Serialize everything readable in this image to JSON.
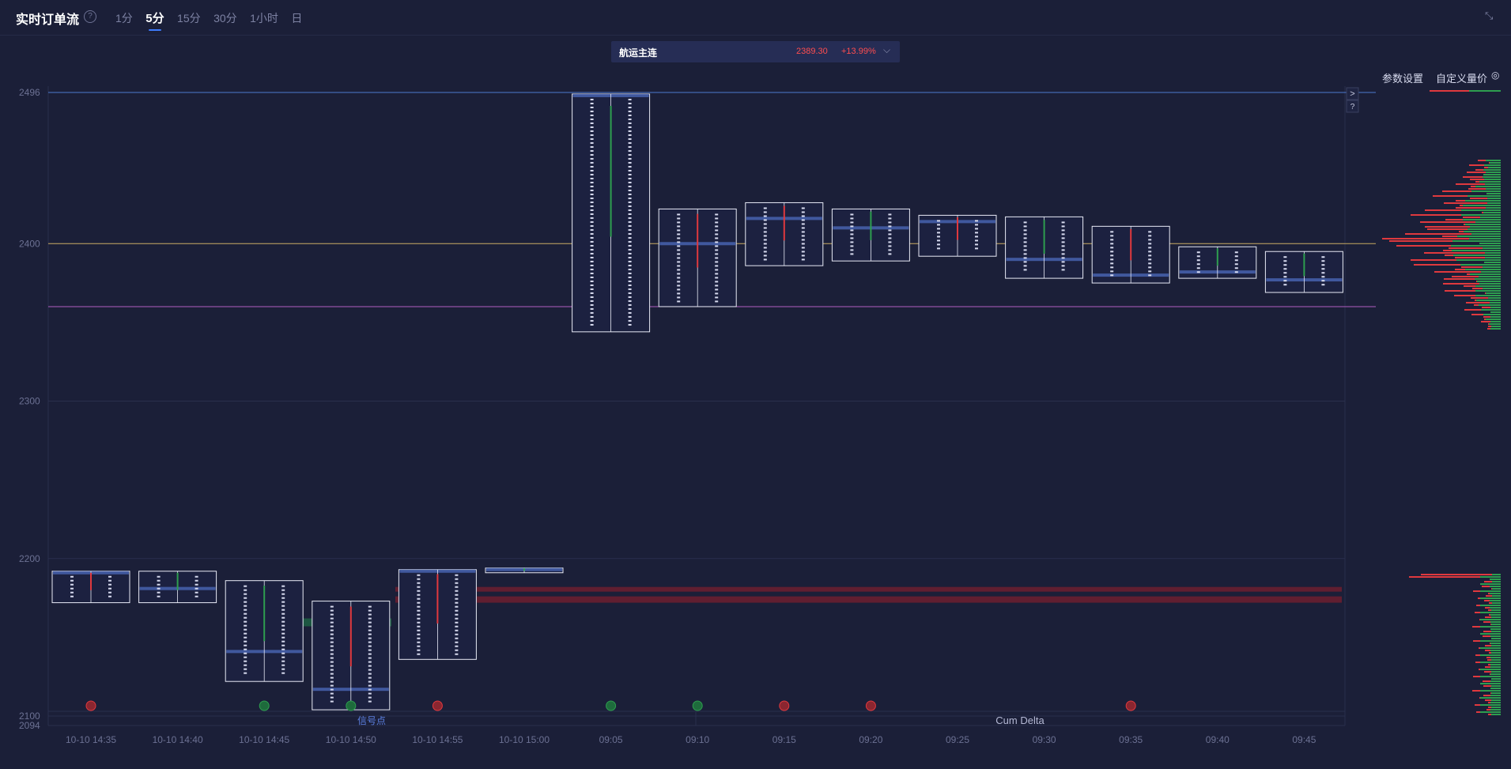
{
  "header": {
    "title": "实时订单流",
    "timeframes": [
      "1分",
      "5分",
      "15分",
      "30分",
      "1小时",
      "日"
    ],
    "active_timeframe": "5分"
  },
  "instrument": {
    "name": "航运主连",
    "price": "2389.30",
    "change": "+13.99%"
  },
  "controls": {
    "param_settings": "参数设置",
    "custom_volume_price": "自定义量价",
    "panel_toggle": ">",
    "panel_help": "?"
  },
  "chart_data": {
    "type": "footprint",
    "y_ticks": [
      "2496",
      "2400",
      "2300",
      "2200",
      "2100",
      "2094"
    ],
    "ylim": [
      2094,
      2500
    ],
    "x": [
      "10-10 14:35",
      "10-10 14:40",
      "10-10 14:45",
      "10-10 14:50",
      "10-10 14:55",
      "10-10 15:00",
      "09:05",
      "09:10",
      "09:15",
      "09:20",
      "09:25",
      "09:30",
      "09:35",
      "09:40",
      "09:45"
    ],
    "bars": [
      {
        "x": "10-10 14:35",
        "high": 2192,
        "low": 2172,
        "poc": 2191,
        "delta": "sell"
      },
      {
        "x": "10-10 14:40",
        "high": 2192,
        "low": 2172,
        "poc": 2181,
        "delta": "buy"
      },
      {
        "x": "10-10 14:45",
        "high": 2186,
        "low": 2122,
        "poc": 2141,
        "delta": "buy"
      },
      {
        "x": "10-10 14:50",
        "high": 2173,
        "low": 2104,
        "poc": 2117,
        "delta": "sell"
      },
      {
        "x": "10-10 14:55",
        "high": 2193,
        "low": 2136,
        "poc": 2192,
        "delta": "sell"
      },
      {
        "x": "10-10 15:00",
        "high": 2194,
        "low": 2191,
        "poc": 2193,
        "delta": "buy"
      },
      {
        "x": "09:05",
        "high": 2495,
        "low": 2344,
        "poc": 2494,
        "delta": "buy"
      },
      {
        "x": "09:10",
        "high": 2422,
        "low": 2360,
        "poc": 2400,
        "delta": "sell"
      },
      {
        "x": "09:15",
        "high": 2426,
        "low": 2386,
        "poc": 2416,
        "delta": "sell"
      },
      {
        "x": "09:20",
        "high": 2422,
        "low": 2389,
        "poc": 2410,
        "delta": "buy"
      },
      {
        "x": "09:25",
        "high": 2418,
        "low": 2392,
        "poc": 2414,
        "delta": "sell"
      },
      {
        "x": "09:30",
        "high": 2417,
        "low": 2378,
        "poc": 2390,
        "delta": "buy"
      },
      {
        "x": "09:35",
        "high": 2411,
        "low": 2375,
        "poc": 2380,
        "delta": "sell"
      },
      {
        "x": "09:40",
        "high": 2398,
        "low": 2378,
        "poc": 2382,
        "delta": "buy"
      },
      {
        "x": "09:45",
        "high": 2395,
        "low": 2369,
        "poc": 2377,
        "delta": "buy"
      }
    ],
    "reference_lines": [
      {
        "price": 2496,
        "color": "#4d7bd1"
      },
      {
        "price": 2400,
        "color": "#c8a95f"
      },
      {
        "price": 2360,
        "color": "#b05cc0"
      }
    ],
    "zones": [
      {
        "price_top": 2182,
        "price_bottom": 2179,
        "color": "#7a1f2e"
      },
      {
        "price_top": 2176,
        "price_bottom": 2172,
        "color": "#7a1f2e"
      },
      {
        "price_top": 2162,
        "price_bottom": 2157,
        "color": "#1f6b45"
      }
    ],
    "signals": [
      {
        "x": "10-10 14:35",
        "kind": "sell"
      },
      {
        "x": "10-10 14:45",
        "kind": "buy"
      },
      {
        "x": "10-10 14:50",
        "kind": "buy"
      },
      {
        "x": "10-10 14:55",
        "kind": "sell"
      },
      {
        "x": "09:05",
        "kind": "buy"
      },
      {
        "x": "09:10",
        "kind": "buy"
      },
      {
        "x": "09:15",
        "kind": "sell"
      },
      {
        "x": "09:20",
        "kind": "sell"
      },
      {
        "x": "09:35",
        "kind": "sell"
      }
    ],
    "signal_label": "信号点",
    "sub_panel_label": "Cum Delta",
    "colors": {
      "buy": "#2e9e4f",
      "sell": "#e0393e",
      "poc": "#4a67b5",
      "box": "#e8eaf6",
      "grid": "#2a2f4d",
      "axis_text": "#6c7193"
    }
  }
}
